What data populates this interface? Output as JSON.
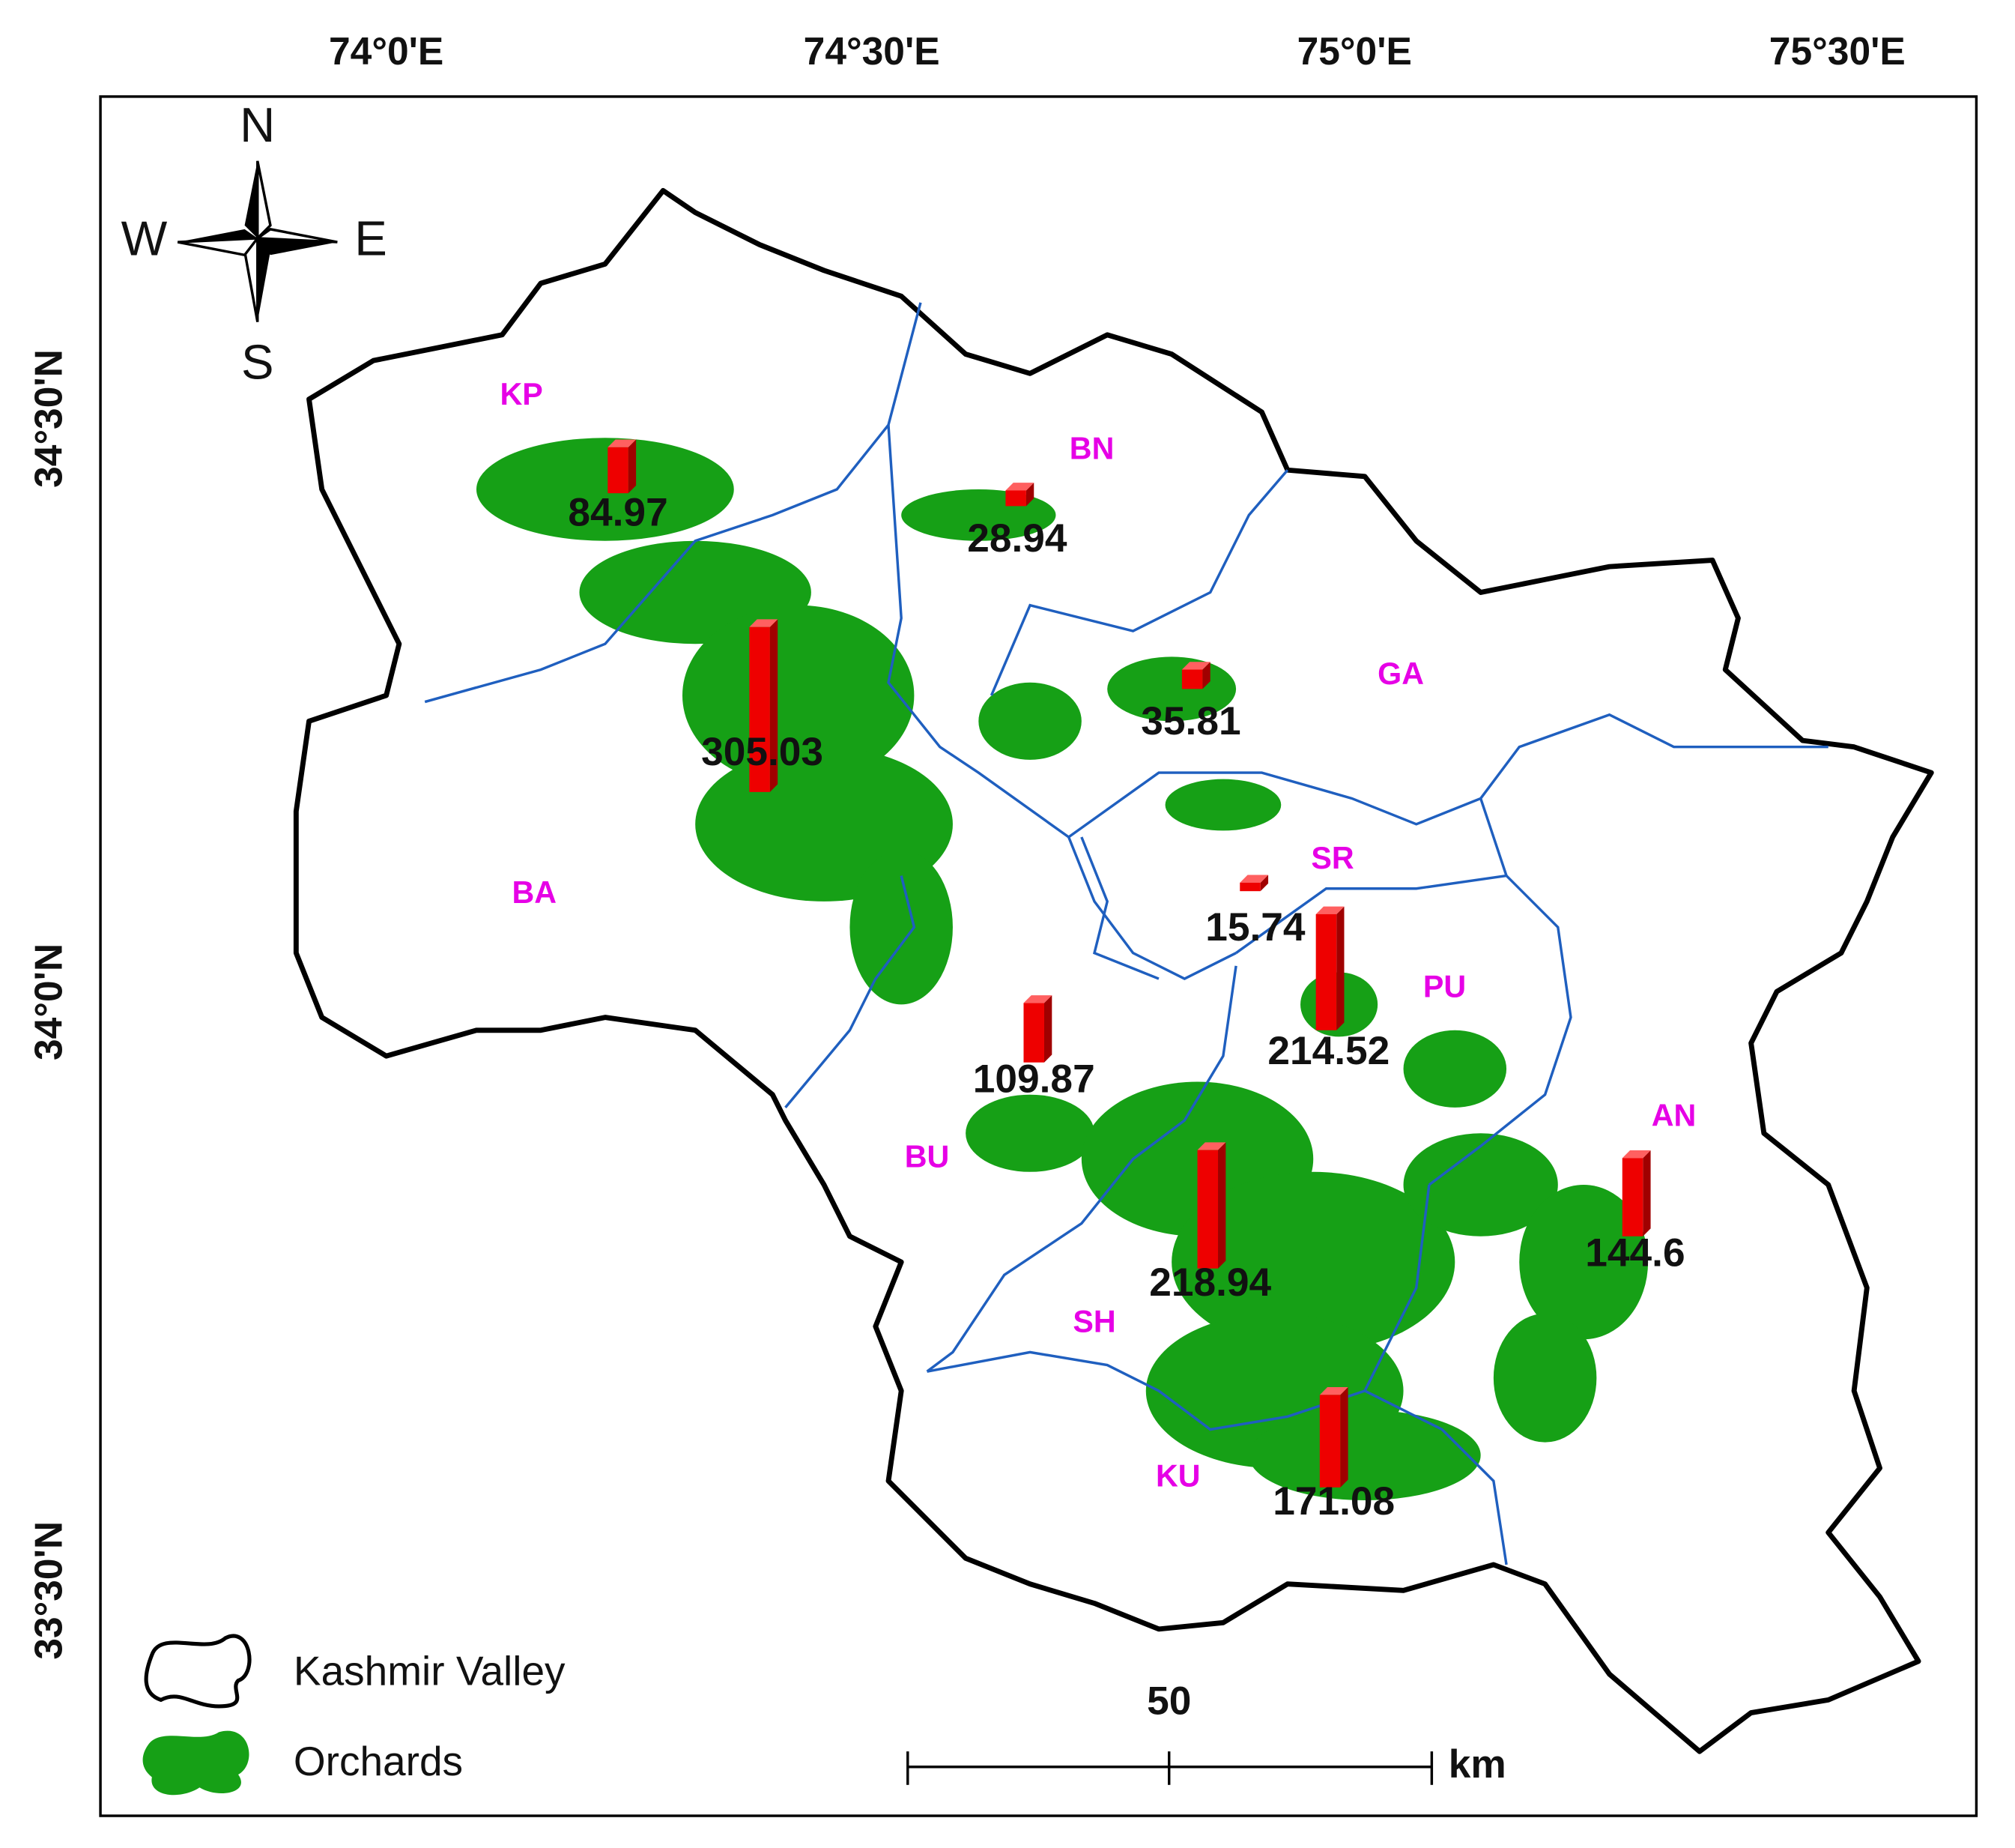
{
  "graticule": {
    "x_labels": [
      "74°0'E",
      "74°30'E",
      "75°0'E",
      "75°30'E"
    ],
    "y_labels": [
      "34°30'N",
      "34°0'N",
      "33°30'N"
    ]
  },
  "compass": {
    "north": "N",
    "east": "E",
    "south": "S",
    "west": "W"
  },
  "districts": [
    {
      "code": "KP",
      "value": 84.97
    },
    {
      "code": "BN",
      "value": 28.94
    },
    {
      "code": "GA",
      "value": 35.81
    },
    {
      "code": "BA",
      "value": 305.03
    },
    {
      "code": "SR",
      "value": 15.74
    },
    {
      "code": "PU",
      "value": 214.52
    },
    {
      "code": "BU",
      "value": 109.87
    },
    {
      "code": "AN",
      "value": 144.6
    },
    {
      "code": "SH",
      "value": 218.94
    },
    {
      "code": "KU",
      "value": 171.08
    }
  ],
  "legend": [
    {
      "label": "Kashmir Valley"
    },
    {
      "label": "Orchards"
    }
  ],
  "scale_bar": {
    "label": "50",
    "unit": "km"
  }
}
